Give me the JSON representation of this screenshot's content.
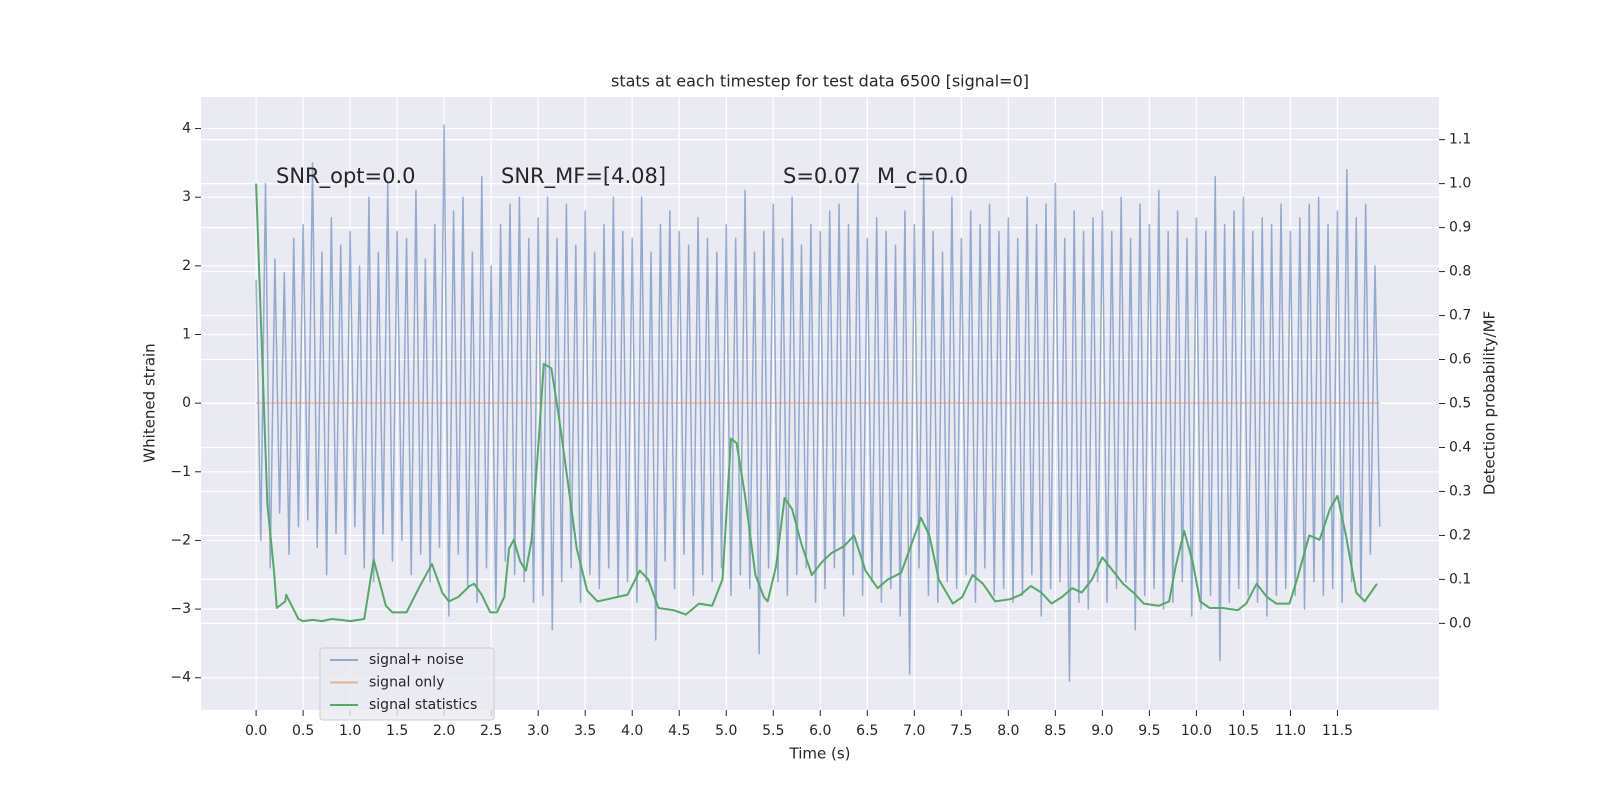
{
  "chart_data": {
    "type": "line",
    "title": "stats at each timestep for test data 6500 [signal=0]",
    "x_label": "Time (s)",
    "y_label": "Whitened strain",
    "y2_label": "Detection probability/MF",
    "annotations": [
      "SNR_opt=0.0",
      "SNR_MF=[4.08]",
      "S=0.07",
      "M_c=0.0"
    ],
    "xlim": [
      -0.586,
      12.58
    ],
    "ylim": [
      -4.47,
      4.46
    ],
    "y2lim": [
      -0.197,
      1.197
    ],
    "grid": true,
    "legend": "lower left",
    "xticks": [
      {
        "value": 0,
        "label": "0.0"
      },
      0.5,
      {
        "value": 1,
        "label": "1.0"
      },
      1.5,
      {
        "value": 2,
        "label": "2.0"
      },
      2.5,
      {
        "value": 3,
        "label": "3.0"
      },
      3.5,
      {
        "value": 4,
        "label": "4.0"
      },
      4.5,
      {
        "value": 5,
        "label": "5.0"
      },
      5.5,
      {
        "value": 6,
        "label": "6.0"
      },
      6.5,
      {
        "value": 7,
        "label": "7.0"
      },
      7.5,
      {
        "value": 8,
        "label": "8.0"
      },
      8.5,
      {
        "value": 9,
        "label": "9.0"
      },
      9.5,
      {
        "value": 10,
        "label": "10.0"
      },
      10.5,
      {
        "value": 11,
        "label": "11.0"
      },
      11.5
    ],
    "yticks": [
      {
        "value": -4,
        "label": "−4"
      },
      {
        "value": -3,
        "label": "−3"
      },
      {
        "value": -2,
        "label": "−2"
      },
      {
        "value": -1,
        "label": "−1"
      },
      0,
      1,
      2,
      3,
      4
    ],
    "y2ticks": [
      {
        "value": 0,
        "label": "0.0"
      },
      0.1,
      0.2,
      0.3,
      0.4,
      0.5,
      0.6,
      0.7,
      0.8,
      0.9,
      {
        "value": 1,
        "label": "1.0"
      },
      1.1
    ],
    "series": [
      {
        "name": "signal+ noise",
        "color": "#4c72b0",
        "x": [
          0,
          0.05,
          0.1,
          0.15,
          0.2,
          0.25,
          0.3,
          0.35,
          0.4,
          0.45,
          0.5,
          0.55,
          0.6,
          0.65,
          0.7,
          0.75,
          0.8,
          0.85,
          0.9,
          0.95,
          1,
          1.05,
          1.1,
          1.15,
          1.2,
          1.25,
          1.3,
          1.35,
          1.4,
          1.45,
          1.5,
          1.55,
          1.6,
          1.65,
          1.7,
          1.75,
          1.8,
          1.85,
          1.9,
          1.95,
          2,
          2.05,
          2.1,
          2.15,
          2.2,
          2.25,
          2.3,
          2.35,
          2.4,
          2.45,
          2.5,
          2.55,
          2.6,
          2.65,
          2.7,
          2.75,
          2.8,
          2.85,
          2.9,
          2.95,
          3,
          3.05,
          3.1,
          3.15,
          3.2,
          3.25,
          3.3,
          3.35,
          3.4,
          3.45,
          3.5,
          3.55,
          3.6,
          3.65,
          3.7,
          3.75,
          3.8,
          3.85,
          3.9,
          3.95,
          4,
          4.05,
          4.1,
          4.15,
          4.2,
          4.25,
          4.3,
          4.35,
          4.4,
          4.45,
          4.5,
          4.55,
          4.6,
          4.65,
          4.7,
          4.75,
          4.8,
          4.85,
          4.9,
          4.95,
          5,
          5.05,
          5.1,
          5.15,
          5.2,
          5.25,
          5.3,
          5.35,
          5.4,
          5.45,
          5.5,
          5.55,
          5.6,
          5.65,
          5.7,
          5.75,
          5.8,
          5.85,
          5.9,
          5.95,
          6,
          6.05,
          6.1,
          6.15,
          6.2,
          6.25,
          6.3,
          6.35,
          6.4,
          6.45,
          6.5,
          6.55,
          6.6,
          6.65,
          6.7,
          6.75,
          6.8,
          6.85,
          6.9,
          6.95,
          7,
          7.05,
          7.1,
          7.15,
          7.2,
          7.25,
          7.3,
          7.35,
          7.4,
          7.45,
          7.5,
          7.55,
          7.6,
          7.65,
          7.7,
          7.75,
          7.8,
          7.85,
          7.9,
          7.95,
          8,
          8.05,
          8.1,
          8.15,
          8.2,
          8.25,
          8.3,
          8.35,
          8.4,
          8.45,
          8.5,
          8.55,
          8.6,
          8.65,
          8.7,
          8.75,
          8.8,
          8.85,
          8.9,
          8.95,
          9,
          9.05,
          9.1,
          9.15,
          9.2,
          9.25,
          9.3,
          9.35,
          9.4,
          9.45,
          9.5,
          9.55,
          9.6,
          9.65,
          9.7,
          9.75,
          9.8,
          9.85,
          9.9,
          9.95,
          10,
          10.05,
          10.1,
          10.15,
          10.2,
          10.25,
          10.3,
          10.35,
          10.4,
          10.45,
          10.5,
          10.55,
          10.6,
          10.65,
          10.7,
          10.75,
          10.8,
          10.85,
          10.9,
          10.95,
          11,
          11.05,
          11.1,
          11.15,
          11.2,
          11.25,
          11.3,
          11.35,
          11.4,
          11.45,
          11.5,
          11.55,
          11.6,
          11.65,
          11.7,
          11.75,
          11.8,
          11.85,
          11.9,
          11.95
        ],
        "values": [
          1.8,
          -2.0,
          3.2,
          -2.4,
          2.1,
          -1.6,
          1.9,
          -2.2,
          2.4,
          -1.8,
          2.6,
          -1.7,
          3.5,
          -2.1,
          2.2,
          -2.5,
          2.7,
          -1.9,
          2.3,
          -2.2,
          2.5,
          -1.8,
          2.0,
          -2.4,
          3.0,
          -2.6,
          2.2,
          -1.9,
          3.2,
          -2.3,
          2.5,
          -2.0,
          2.4,
          -2.5,
          3.1,
          -2.2,
          2.1,
          -2.6,
          2.6,
          -2.1,
          4.05,
          -3.1,
          2.8,
          -2.2,
          3.0,
          -2.7,
          2.2,
          -2.9,
          3.3,
          -2.4,
          2.0,
          -3.0,
          2.6,
          -2.3,
          2.9,
          -2.5,
          3.0,
          -2.6,
          2.4,
          -2.9,
          2.7,
          -2.8,
          3.0,
          -3.3,
          2.4,
          -2.6,
          2.9,
          -2.4,
          2.3,
          -2.9,
          2.8,
          -2.5,
          2.2,
          -2.7,
          2.6,
          -2.4,
          3.0,
          -2.8,
          2.5,
          -2.6,
          2.4,
          -2.9,
          3.0,
          -2.6,
          2.2,
          -3.45,
          2.6,
          -2.3,
          2.8,
          -2.7,
          2.5,
          -2.2,
          2.3,
          -2.8,
          2.7,
          -2.5,
          2.4,
          -2.6,
          2.2,
          -2.4,
          2.6,
          -2.8,
          2.4,
          -2.5,
          3.1,
          -2.7,
          2.2,
          -3.65,
          2.5,
          -2.4,
          2.9,
          -2.6,
          2.4,
          -2.8,
          3.0,
          -2.5,
          2.3,
          -2.4,
          2.6,
          -2.9,
          2.5,
          -2.7,
          2.8,
          -2.4,
          2.9,
          -3.1,
          2.6,
          -2.5,
          3.2,
          -2.8,
          2.4,
          -2.6,
          2.7,
          -2.9,
          2.5,
          -2.7,
          2.3,
          -3.1,
          2.8,
          -3.95,
          2.6,
          -2.4,
          3.3,
          -2.8,
          2.5,
          -2.9,
          2.2,
          -2.6,
          3.0,
          -2.7,
          2.4,
          -2.5,
          2.8,
          -2.9,
          2.6,
          -2.4,
          2.9,
          -2.8,
          2.5,
          -2.7,
          2.7,
          -2.9,
          2.4,
          -2.8,
          3.0,
          -2.5,
          2.6,
          -3.1,
          2.9,
          -2.7,
          3.2,
          -2.6,
          2.4,
          -4.05,
          2.8,
          -2.9,
          2.5,
          -3.0,
          2.7,
          -2.6,
          2.8,
          -2.9,
          2.5,
          -2.7,
          3.0,
          -2.6,
          2.4,
          -3.3,
          2.9,
          -2.8,
          2.6,
          -2.7,
          3.1,
          -3.0,
          2.5,
          -2.9,
          2.8,
          -2.6,
          2.4,
          -3.1,
          2.7,
          -3.0,
          2.5,
          -2.8,
          3.3,
          -3.75,
          2.6,
          -2.9,
          2.8,
          -2.7,
          3.0,
          -2.8,
          2.5,
          -2.9,
          2.7,
          -3.1,
          2.6,
          -2.8,
          2.9,
          -2.7,
          2.5,
          -2.8,
          2.7,
          -3.0,
          2.9,
          -2.6,
          3.0,
          -2.8,
          2.6,
          -2.7,
          2.8,
          -2.9,
          3.4,
          -2.6,
          2.7,
          -2.8,
          2.9,
          -2.2,
          2.0,
          -1.8
        ]
      },
      {
        "name": "signal only",
        "color": "#dd8452",
        "x": [
          0,
          11.95
        ],
        "values": [
          0,
          0
        ]
      },
      {
        "name": "signal statistics",
        "color": "#55a868",
        "axis": "y2",
        "x": [
          0,
          0.12,
          0.19,
          0.22,
          0.31,
          0.32,
          0.45,
          0.5,
          0.6,
          0.7,
          0.8,
          0.9,
          1,
          1.15,
          1.25,
          1.38,
          1.45,
          1.6,
          1.73,
          1.87,
          1.98,
          2.05,
          2.15,
          2.27,
          2.32,
          2.4,
          2.49,
          2.56,
          2.64,
          2.69,
          2.74,
          2.81,
          2.87,
          2.93,
          3,
          3.06,
          3.14,
          3.22,
          3.31,
          3.41,
          3.52,
          3.63,
          3.74,
          3.84,
          3.95,
          4.08,
          4.17,
          4.28,
          4.44,
          4.57,
          4.71,
          4.85,
          4.96,
          5.05,
          5.11,
          5.2,
          5.31,
          5.4,
          5.44,
          5.53,
          5.62,
          5.7,
          5.8,
          5.91,
          6.02,
          6.12,
          6.25,
          6.36,
          6.48,
          6.61,
          6.72,
          6.86,
          6.97,
          7.07,
          7.16,
          7.26,
          7.41,
          7.51,
          7.62,
          7.73,
          7.86,
          8.02,
          8.13,
          8.24,
          8.35,
          8.46,
          8.57,
          8.68,
          8.78,
          8.89,
          9,
          9.11,
          9.22,
          9.33,
          9.44,
          9.6,
          9.71,
          9.78,
          9.87,
          9.96,
          10.04,
          10.14,
          10.28,
          10.44,
          10.53,
          10.64,
          10.75,
          10.85,
          10.99,
          11.07,
          11.2,
          11.31,
          11.42,
          11.5,
          11.59,
          11.7,
          11.79,
          11.92
        ],
        "values": [
          1.0,
          0.27,
          0.12,
          0.035,
          0.05,
          0.065,
          0.01,
          0.005,
          0.008,
          0.005,
          0.01,
          0.008,
          0.005,
          0.01,
          0.145,
          0.04,
          0.025,
          0.025,
          0.08,
          0.135,
          0.07,
          0.05,
          0.06,
          0.085,
          0.09,
          0.065,
          0.025,
          0.025,
          0.06,
          0.17,
          0.19,
          0.14,
          0.12,
          0.19,
          0.4,
          0.59,
          0.58,
          0.47,
          0.33,
          0.17,
          0.075,
          0.05,
          0.055,
          0.06,
          0.065,
          0.12,
          0.1,
          0.035,
          0.03,
          0.02,
          0.045,
          0.04,
          0.1,
          0.42,
          0.41,
          0.29,
          0.11,
          0.06,
          0.05,
          0.13,
          0.285,
          0.26,
          0.18,
          0.11,
          0.14,
          0.16,
          0.175,
          0.2,
          0.12,
          0.08,
          0.1,
          0.115,
          0.18,
          0.24,
          0.2,
          0.1,
          0.045,
          0.06,
          0.11,
          0.09,
          0.05,
          0.055,
          0.065,
          0.085,
          0.07,
          0.045,
          0.06,
          0.08,
          0.07,
          0.1,
          0.15,
          0.12,
          0.09,
          0.07,
          0.045,
          0.04,
          0.05,
          0.13,
          0.21,
          0.14,
          0.05,
          0.035,
          0.035,
          0.03,
          0.045,
          0.09,
          0.06,
          0.045,
          0.045,
          0.1,
          0.2,
          0.19,
          0.26,
          0.29,
          0.2,
          0.07,
          0.05,
          0.09
        ]
      }
    ]
  }
}
